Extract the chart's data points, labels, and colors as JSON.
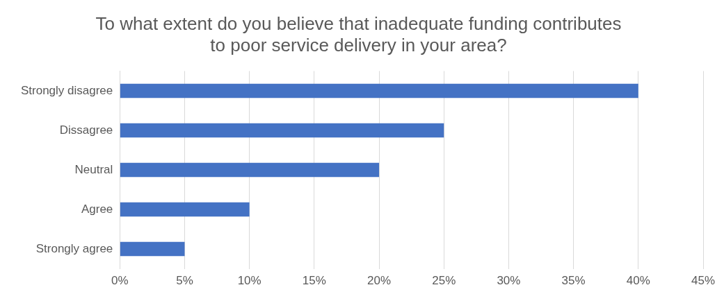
{
  "chart_data": {
    "type": "bar",
    "orientation": "horizontal",
    "title": "To what extent do you believe that inadequate funding contributes to poor service delivery in your area?",
    "categories": [
      "Strongly disagree",
      "Dissagree",
      "Neutral",
      "Agree",
      "Strongly agree"
    ],
    "values": [
      40,
      25,
      20,
      10,
      5
    ],
    "color": "#4472c4",
    "xlim": [
      0,
      45
    ],
    "xticks": [
      {
        "value": 0,
        "label": "0%"
      },
      {
        "value": 5,
        "label": "5%"
      },
      {
        "value": 10,
        "label": "10%"
      },
      {
        "value": 15,
        "label": "15%"
      },
      {
        "value": 20,
        "label": "20%"
      },
      {
        "value": 25,
        "label": "25%"
      },
      {
        "value": 30,
        "label": "30%"
      },
      {
        "value": 35,
        "label": "35%"
      },
      {
        "value": 40,
        "label": "40%"
      },
      {
        "value": 45,
        "label": "45%"
      }
    ],
    "grid": "x",
    "legend": false
  }
}
